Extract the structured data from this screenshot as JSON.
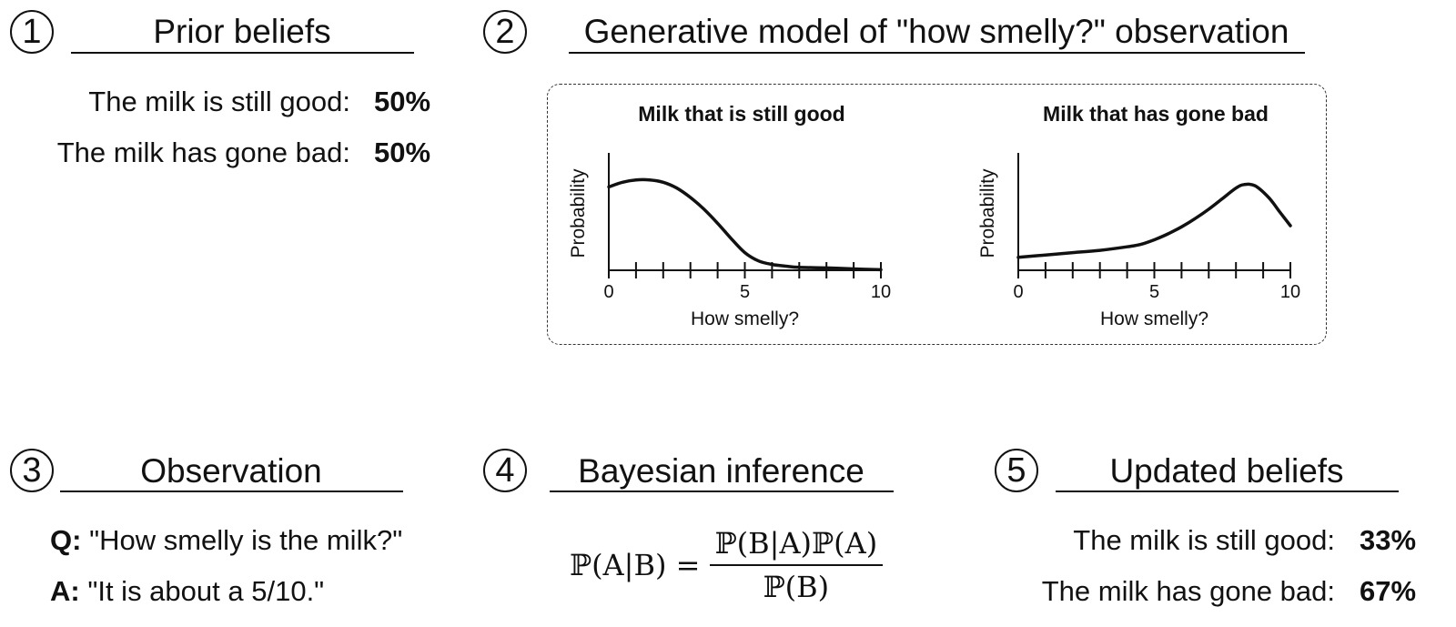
{
  "sections": {
    "prior": {
      "number": "1",
      "title": "Prior beliefs",
      "rows": [
        {
          "label": "The milk is still good:",
          "value": "50%"
        },
        {
          "label": "The milk has gone bad:",
          "value": "50%"
        }
      ]
    },
    "generative": {
      "number": "2",
      "title": "Generative model of \"how smelly?\" observation"
    },
    "observation": {
      "number": "3",
      "title": "Observation",
      "q_key": "Q:",
      "q_text": "\"How smelly is the milk?\"",
      "a_key": "A:",
      "a_text": "\"It is about a 5/10.\""
    },
    "inference": {
      "number": "4",
      "title": "Bayesian inference",
      "formula": {
        "lhs": "ℙ(A|B) =",
        "numerator": "ℙ(B|A)ℙ(A)",
        "denominator": "ℙ(B)"
      }
    },
    "updated": {
      "number": "5",
      "title": "Updated beliefs",
      "rows": [
        {
          "label": "The milk is still good:",
          "value": "33%"
        },
        {
          "label": "The milk has gone bad:",
          "value": "67%"
        }
      ]
    }
  },
  "chart_data": [
    {
      "type": "line",
      "title": "Milk that is still good",
      "xlabel": "How smelly?",
      "ylabel": "Probability",
      "xlim": [
        0,
        10
      ],
      "ylim": [
        0,
        1
      ],
      "ticks": [
        0,
        1,
        2,
        3,
        4,
        5,
        6,
        7,
        8,
        9,
        10
      ],
      "tick_labels": [
        "0",
        "5",
        "10"
      ],
      "x": [
        0,
        0.5,
        1,
        1.5,
        2,
        2.5,
        3,
        3.5,
        4,
        4.5,
        5,
        5.5,
        6,
        6.5,
        7,
        8,
        9,
        10
      ],
      "y": [
        0.71,
        0.75,
        0.77,
        0.77,
        0.75,
        0.7,
        0.62,
        0.52,
        0.4,
        0.27,
        0.15,
        0.08,
        0.05,
        0.035,
        0.025,
        0.02,
        0.012,
        0.005
      ]
    },
    {
      "type": "line",
      "title": "Milk that has gone bad",
      "xlabel": "How smelly?",
      "ylabel": "Probability",
      "xlim": [
        0,
        10
      ],
      "ylim": [
        0,
        1
      ],
      "ticks": [
        0,
        1,
        2,
        3,
        4,
        5,
        6,
        7,
        8,
        9,
        10
      ],
      "tick_labels": [
        "0",
        "5",
        "10"
      ],
      "x": [
        0,
        1,
        2,
        3,
        4,
        4.5,
        5,
        5.5,
        6,
        6.5,
        7,
        7.5,
        8,
        8.3,
        8.7,
        9.2,
        9.6,
        10
      ],
      "y": [
        0.11,
        0.13,
        0.15,
        0.17,
        0.2,
        0.22,
        0.26,
        0.31,
        0.37,
        0.44,
        0.52,
        0.61,
        0.7,
        0.73,
        0.72,
        0.62,
        0.5,
        0.38
      ]
    }
  ]
}
